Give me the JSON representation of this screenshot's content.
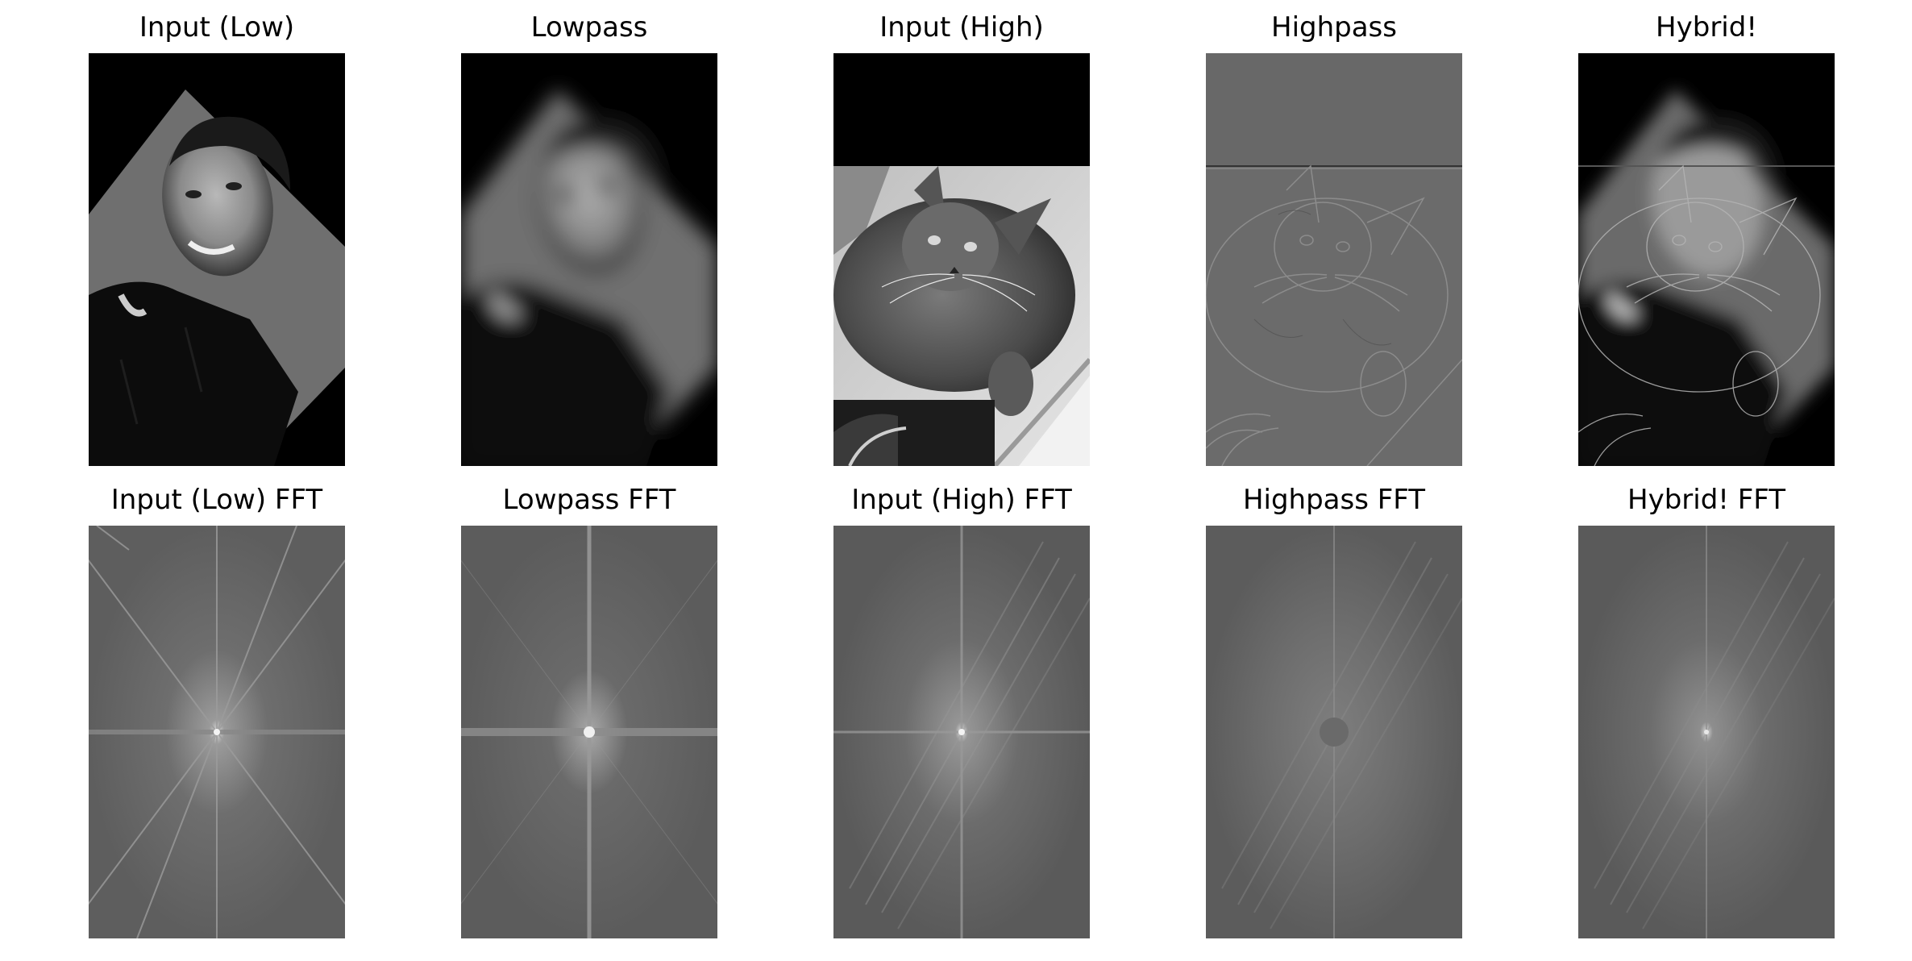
{
  "figure": {
    "panels_top": [
      {
        "title": "Input (Low)",
        "image_name": "portrait-man-rotated"
      },
      {
        "title": "Lowpass",
        "image_name": "portrait-man-blurred"
      },
      {
        "title": "Input (High)",
        "image_name": "cat-photo"
      },
      {
        "title": "Highpass",
        "image_name": "cat-edges"
      },
      {
        "title": "Hybrid!",
        "image_name": "hybrid-man-cat"
      }
    ],
    "panels_bottom": [
      {
        "title": "Input (Low) FFT",
        "image_name": "fft-input-low"
      },
      {
        "title": "Lowpass FFT",
        "image_name": "fft-lowpass"
      },
      {
        "title": "Input (High) FFT",
        "image_name": "fft-input-high"
      },
      {
        "title": "Highpass FFT",
        "image_name": "fft-highpass"
      },
      {
        "title": "Hybrid! FFT",
        "image_name": "fft-hybrid"
      }
    ]
  }
}
